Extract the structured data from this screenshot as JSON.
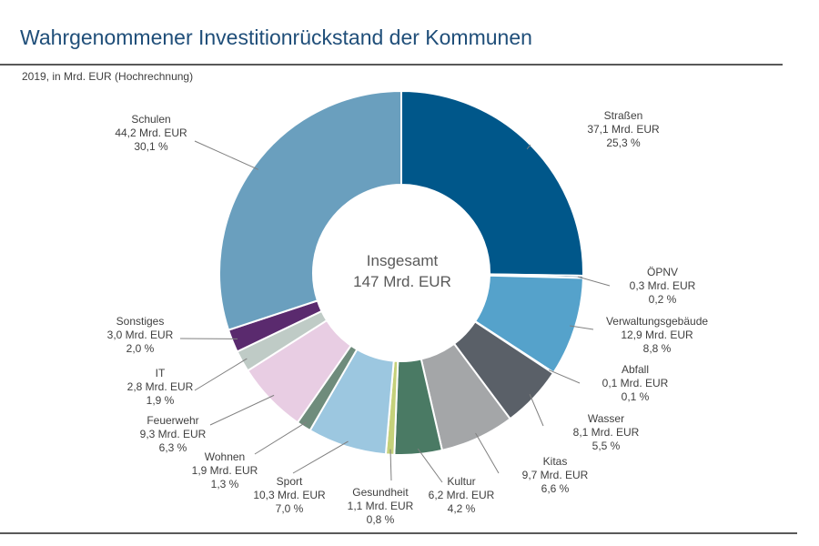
{
  "header": {
    "title": "Wahrgenommener Investitionrückstand der Kommunen",
    "subtitle": "2019, in Mrd. EUR (Hochrechnung)"
  },
  "chart_data": {
    "type": "pie",
    "variant": "donut",
    "title": "Wahrgenommener Investitionrückstand der Kommunen",
    "subtitle": "2019, in Mrd. EUR (Hochrechnung)",
    "center_label": [
      "Insgesamt",
      "147 Mrd. EUR"
    ],
    "total": 147,
    "unit": "Mrd. EUR",
    "slices": [
      {
        "name": "Straßen",
        "value": 37.1,
        "value_label": "37,1 Mrd. EUR",
        "percent": 25.3,
        "percent_label": "25,3 %",
        "color": "#00578a"
      },
      {
        "name": "ÖPNV",
        "value": 0.3,
        "value_label": "0,3 Mrd. EUR",
        "percent": 0.2,
        "percent_label": "0,2 %",
        "color": "#0d4a78"
      },
      {
        "name": "Verwaltungsgebäude",
        "value": 12.9,
        "value_label": "12,9 Mrd. EUR",
        "percent": 8.8,
        "percent_label": "8,8 %",
        "color": "#55a2cb"
      },
      {
        "name": "Abfall",
        "value": 0.1,
        "value_label": "0,1 Mrd. EUR",
        "percent": 0.1,
        "percent_label": "0,1 %",
        "color": "#3a3f45"
      },
      {
        "name": "Wasser",
        "value": 8.1,
        "value_label": "8,1 Mrd. EUR",
        "percent": 5.5,
        "percent_label": "5,5 %",
        "color": "#5a6068"
      },
      {
        "name": "Kitas",
        "value": 9.7,
        "value_label": "9,7 Mrd. EUR",
        "percent": 6.6,
        "percent_label": "6,6 %",
        "color": "#a4a6a8"
      },
      {
        "name": "Kultur",
        "value": 6.2,
        "value_label": "6,2 Mrd. EUR",
        "percent": 4.2,
        "percent_label": "4,2 %",
        "color": "#4a7a64"
      },
      {
        "name": "Gesundheit",
        "value": 1.1,
        "value_label": "1,1 Mrd. EUR",
        "percent": 0.8,
        "percent_label": "0,8 %",
        "color": "#c5d17a"
      },
      {
        "name": "Sport",
        "value": 10.3,
        "value_label": "10,3 Mrd. EUR",
        "percent": 7.0,
        "percent_label": "7,0 %",
        "color": "#9cc7e0"
      },
      {
        "name": "Wohnen",
        "value": 1.9,
        "value_label": "1,9 Mrd. EUR",
        "percent": 1.3,
        "percent_label": "1,3 %",
        "color": "#6f8c7c"
      },
      {
        "name": "Feuerwehr",
        "value": 9.3,
        "value_label": "9,3 Mrd. EUR",
        "percent": 6.3,
        "percent_label": "6,3 %",
        "color": "#e8cde3"
      },
      {
        "name": "IT",
        "value": 2.8,
        "value_label": "2,8 Mrd. EUR",
        "percent": 1.9,
        "percent_label": "1,9 %",
        "color": "#bfcbc6"
      },
      {
        "name": "Sonstiges",
        "value": 3.0,
        "value_label": "3,0 Mrd. EUR",
        "percent": 2.0,
        "percent_label": "2,0 %",
        "color": "#5a2a6e"
      },
      {
        "name": "Schulen",
        "value": 44.2,
        "value_label": "44,2 Mrd. EUR",
        "percent": 30.1,
        "percent_label": "30,1 %",
        "color": "#6a9fbe"
      }
    ]
  }
}
